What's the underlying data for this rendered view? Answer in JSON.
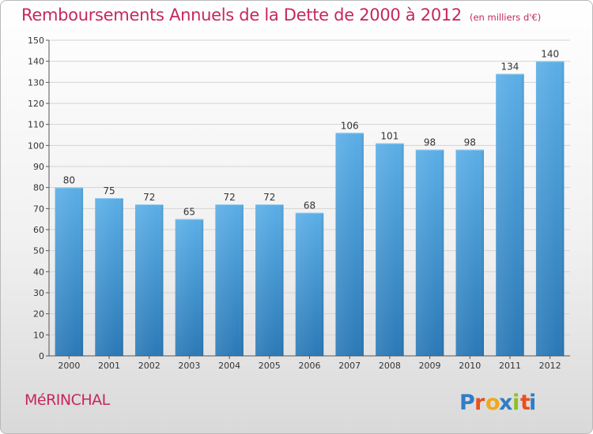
{
  "title": "Remboursements Annuels de la Dette de 2000 à 2012",
  "unit": "(en milliers d'€)",
  "commune": "MéRINCHAL",
  "brand": [
    "P",
    "r",
    "o",
    "x",
    "i",
    "t",
    "i"
  ],
  "brand_colors": [
    "#2f7dc6",
    "#e8511d",
    "#f0a81b",
    "#2f7dc6",
    "#8cbf26",
    "#e8511d",
    "#2f7dc6"
  ],
  "colors": {
    "title": "#c6285a",
    "bar_top": "#5aaee6",
    "bar_bottom": "#2a78b6"
  },
  "chart_data": {
    "type": "bar",
    "title": "Remboursements Annuels de la Dette de 2000 à 2012",
    "unit": "(en milliers d'€)",
    "categories": [
      "2000",
      "2001",
      "2002",
      "2003",
      "2004",
      "2005",
      "2006",
      "2007",
      "2008",
      "2009",
      "2010",
      "2011",
      "2012"
    ],
    "values": [
      80,
      75,
      72,
      65,
      72,
      72,
      68,
      106,
      101,
      98,
      98,
      134,
      140
    ],
    "ylim": [
      0,
      150
    ],
    "yticks": [
      0,
      10,
      20,
      30,
      40,
      50,
      60,
      70,
      80,
      90,
      100,
      110,
      120,
      130,
      140,
      150
    ],
    "grid": true,
    "legend": "none"
  }
}
